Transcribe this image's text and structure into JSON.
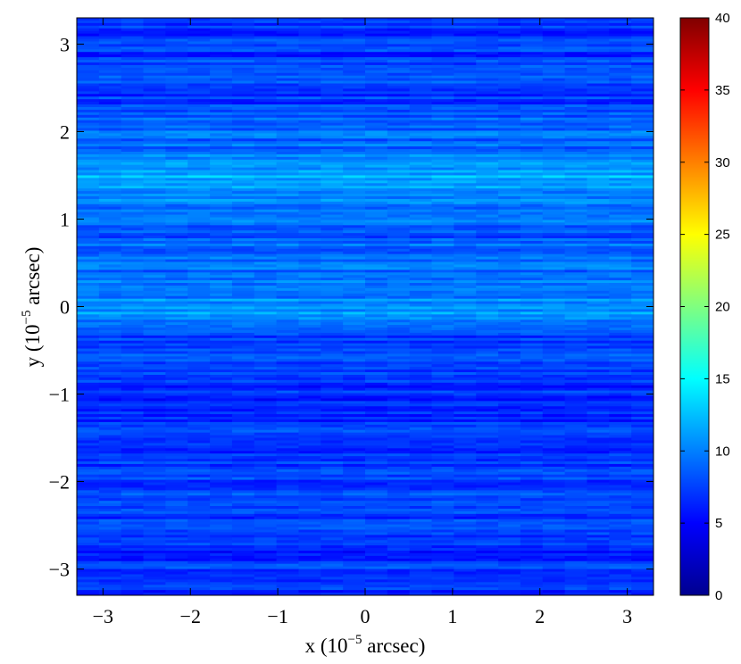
{
  "chart_data": {
    "type": "heatmap",
    "title": "",
    "xlabel": {
      "prefix": "x (10",
      "exponent": "−5",
      "suffix": " arcsec)"
    },
    "ylabel": {
      "prefix": "y (10",
      "exponent": "−5",
      "suffix": " arcsec)"
    },
    "xlim": [
      -3.3,
      3.3
    ],
    "ylim": [
      -3.3,
      3.3
    ],
    "x_ticks": [
      -3,
      -2,
      -1,
      0,
      1,
      2,
      3
    ],
    "y_ticks": [
      -3,
      -2,
      -1,
      0,
      1,
      2,
      3
    ],
    "x_tick_labels": [
      "−3",
      "−2",
      "−1",
      "0",
      "1",
      "2",
      "3"
    ],
    "y_tick_labels": [
      "−3",
      "−2",
      "−1",
      "0",
      "1",
      "2",
      "3"
    ],
    "colormap": "jet",
    "colorbar": {
      "range": [
        0,
        40
      ],
      "ticks": [
        0,
        5,
        10,
        15,
        20,
        25,
        30,
        35,
        40
      ],
      "tick_labels": [
        "0",
        "5",
        "10",
        "15",
        "20",
        "25",
        "30",
        "35",
        "40"
      ]
    },
    "row_profile": {
      "description_values_are_intensity_by_y": true,
      "y": [
        -3.3,
        -3.0,
        -2.7,
        -2.4,
        -2.1,
        -1.8,
        -1.5,
        -1.2,
        -0.9,
        -0.6,
        -0.3,
        -0.1,
        0.0,
        0.2,
        0.5,
        0.8,
        1.0,
        1.2,
        1.4,
        1.6,
        1.8,
        2.0,
        2.3,
        2.6,
        2.9,
        3.3
      ],
      "value": [
        6.5,
        7.0,
        6.8,
        7.2,
        7.5,
        6.8,
        7.0,
        6.5,
        6.8,
        7.2,
        8.0,
        10.5,
        11.0,
        9.5,
        9.0,
        8.5,
        9.0,
        10.0,
        12.0,
        11.5,
        9.0,
        9.5,
        7.5,
        7.5,
        7.0,
        6.5
      ]
    }
  }
}
